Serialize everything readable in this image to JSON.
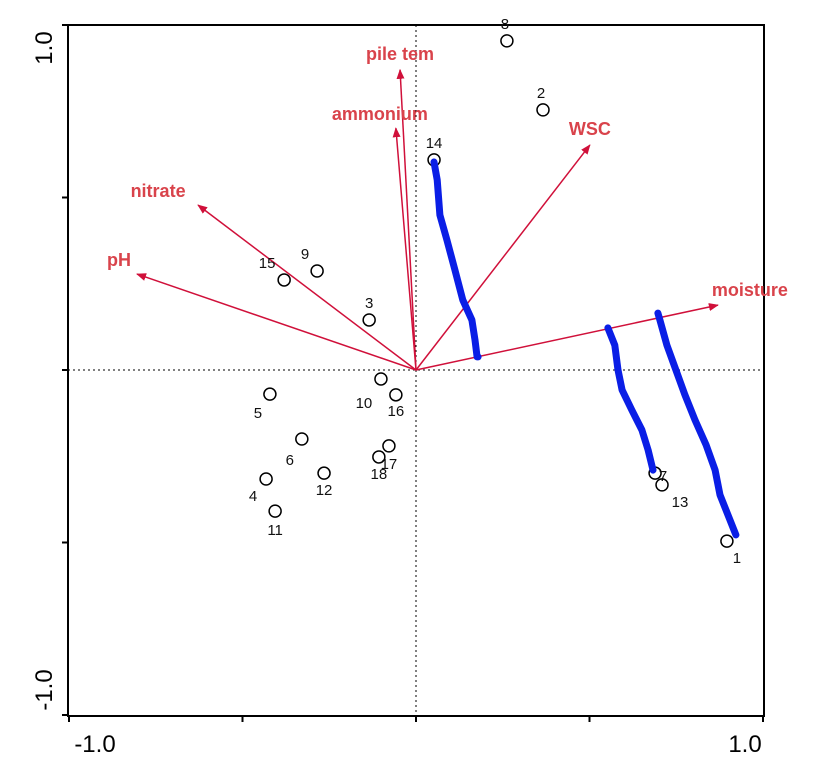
{
  "chart_data": {
    "type": "scatter",
    "title": "",
    "xlabel": "",
    "ylabel": "",
    "xlim": [
      -1.0,
      1.0
    ],
    "ylim": [
      -1.0,
      1.0
    ],
    "x_tick_labels": [
      "-1.0",
      "1.0"
    ],
    "y_tick_labels": [
      "1.0",
      "-1.0"
    ],
    "grid": false,
    "reference_lines": "dotted lines at x=0 and y=0",
    "samples": [
      {
        "label": "1",
        "x": 0.896,
        "y": -0.496
      },
      {
        "label": "2",
        "x": 0.366,
        "y": 0.754
      },
      {
        "label": "3",
        "x": -0.135,
        "y": 0.145
      },
      {
        "label": "4",
        "x": -0.432,
        "y": -0.316
      },
      {
        "label": "5",
        "x": -0.421,
        "y": -0.07
      },
      {
        "label": "6",
        "x": -0.329,
        "y": -0.2
      },
      {
        "label": "7",
        "x": 0.689,
        "y": -0.299
      },
      {
        "label": "8",
        "x": 0.262,
        "y": 0.954
      },
      {
        "label": "9",
        "x": -0.285,
        "y": 0.287
      },
      {
        "label": "10",
        "x": -0.101,
        "y": -0.026
      },
      {
        "label": "11",
        "x": -0.406,
        "y": -0.409
      },
      {
        "label": "12",
        "x": -0.265,
        "y": -0.299
      },
      {
        "label": "13",
        "x": 0.709,
        "y": -0.333
      },
      {
        "label": "14",
        "x": 0.052,
        "y": 0.609
      },
      {
        "label": "15",
        "x": -0.38,
        "y": 0.261
      },
      {
        "label": "16",
        "x": -0.058,
        "y": -0.072
      },
      {
        "label": "17",
        "x": -0.078,
        "y": -0.22
      },
      {
        "label": "18",
        "x": -0.107,
        "y": -0.252
      }
    ],
    "variables": [
      {
        "label": "pile tem",
        "x": -0.046,
        "y": 0.87
      },
      {
        "label": "ammonium",
        "x": -0.058,
        "y": 0.701
      },
      {
        "label": "WSC",
        "x": 0.501,
        "y": 0.652
      },
      {
        "label": "nitrate",
        "x": -0.628,
        "y": 0.478
      },
      {
        "label": "pH",
        "x": -0.804,
        "y": 0.278
      },
      {
        "label": "moisture",
        "x": 0.87,
        "y": 0.188
      }
    ],
    "annotations": [
      {
        "name": "blue-stroke-1",
        "points": [
          [
            0.052,
            0.603
          ],
          [
            0.061,
            0.551
          ],
          [
            0.069,
            0.449
          ],
          [
            0.089,
            0.377
          ],
          [
            0.112,
            0.29
          ],
          [
            0.135,
            0.203
          ],
          [
            0.161,
            0.145
          ],
          [
            0.17,
            0.087
          ],
          [
            0.176,
            0.038
          ],
          [
            0.179,
            0.038
          ]
        ]
      },
      {
        "name": "blue-stroke-2",
        "points": [
          [
            0.553,
            0.122
          ],
          [
            0.573,
            0.072
          ],
          [
            0.582,
            0.0
          ],
          [
            0.594,
            -0.058
          ],
          [
            0.622,
            -0.116
          ],
          [
            0.651,
            -0.174
          ],
          [
            0.669,
            -0.232
          ],
          [
            0.683,
            -0.29
          ]
        ]
      },
      {
        "name": "blue-stroke-3",
        "points": [
          [
            0.697,
            0.165
          ],
          [
            0.703,
            0.145
          ],
          [
            0.723,
            0.072
          ],
          [
            0.749,
            0.0
          ],
          [
            0.775,
            -0.072
          ],
          [
            0.804,
            -0.145
          ],
          [
            0.836,
            -0.217
          ],
          [
            0.862,
            -0.29
          ],
          [
            0.876,
            -0.362
          ],
          [
            0.905,
            -0.435
          ],
          [
            0.922,
            -0.478
          ]
        ]
      }
    ],
    "colors": {
      "arrow": "#d0103a",
      "var_label": "#d9434b",
      "annotation": "#0a1ee6",
      "point": "#000000"
    }
  }
}
